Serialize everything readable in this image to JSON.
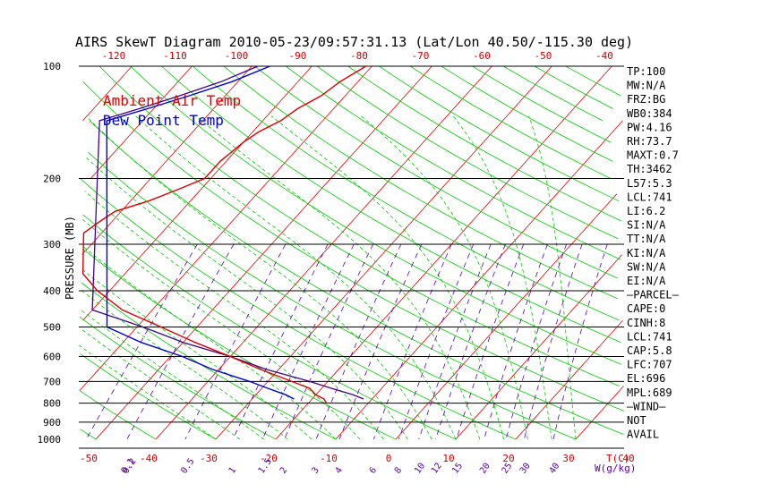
{
  "title": "AIRS SkewT Diagram 2010-05-23/09:57:31.13 (Lat/Lon 40.50/-115.30 deg)",
  "legend": [
    {
      "label": "Ambient Air Temp",
      "color": "#dd0000"
    },
    {
      "label": "Dew Point Temp",
      "color": "#0000cc"
    }
  ],
  "colors": {
    "isotherm": "#dd0000",
    "dry_adiabat": "#00cc00",
    "moist_adiabat": "#00cc00",
    "mixing_ratio": "#5500aa",
    "isobar": "#000000",
    "parcel": "#440088",
    "labels_pressure": "#000000",
    "labels_temp": "#cc0000",
    "labels_mixing": "#550099"
  },
  "axes": {
    "ylabel": "PRESSURE (MB)",
    "xlabel_temp": "T(C)",
    "xlabel_mixing": "W(g/kg)",
    "pressure_ticks": [
      "100",
      "200",
      "300",
      "400",
      "500",
      "600",
      "700",
      "800",
      "900",
      "1000"
    ],
    "top_temp_ticks": [
      "-120",
      "-110",
      "-100",
      "-90",
      "-80",
      "-70",
      "-60",
      "-50",
      "-40"
    ],
    "bottom_temp_ticks": [
      "-50",
      "-40",
      "-30",
      "-20",
      "-10",
      "0",
      "10",
      "20",
      "30",
      "40"
    ],
    "mixing_ticks": [
      "0.1",
      "0.2",
      "0.5",
      "1",
      "1.5",
      "2",
      "3",
      "4",
      "6",
      "8",
      "10",
      "12",
      "15",
      "20",
      "25",
      "30",
      "40"
    ]
  },
  "indices": [
    "TP:100",
    "MW:N/A",
    "FRZ:BG",
    "WB0:384",
    "PW:4.16",
    "RH:73.7",
    "MAXT:0.7",
    "TH:3462",
    "L57:5.3",
    "LCL:741",
    "LI:6.2",
    "SI:N/A",
    "TT:N/A",
    "KI:N/A",
    "SW:N/A",
    "EI:N/A",
    "—PARCEL—",
    "CAPE:0",
    "CINH:8",
    "LCL:741",
    "CAP:5.8",
    "LFC:707",
    "EL:696",
    "MPL:689",
    "—WIND—",
    "NOT",
    "AVAIL"
  ],
  "chart_data": {
    "type": "line",
    "title": "AIRS SkewT Diagram 2010-05-23/09:57:31.13 (Lat/Lon 40.50/-115.30 deg)",
    "xlabel": "T(C)",
    "ylabel": "PRESSURE (MB)",
    "ylim": [
      1000,
      100
    ],
    "yscale": "log",
    "series": [
      {
        "name": "Ambient Air Temp",
        "color": "#dd0000",
        "x_name": "temperature_C",
        "pressure": [
          100,
          110,
          120,
          130,
          140,
          150,
          160,
          170,
          180,
          190,
          200,
          215,
          230,
          245,
          260,
          280,
          300,
          330,
          360,
          400,
          450,
          500,
          550,
          600,
          650,
          700,
          730,
          760,
          780,
          800
        ],
        "temperature": [
          -51,
          -53,
          -54,
          -56,
          -57,
          -59,
          -60,
          -60.5,
          -61,
          -61,
          -61,
          -64,
          -67,
          -71,
          -72,
          -73,
          -74,
          -70,
          -67,
          -62,
          -55,
          -46,
          -38,
          -30,
          -23,
          -16,
          -12,
          -10,
          -8,
          -7
        ]
      },
      {
        "name": "Dew Point Temp",
        "color": "#0000cc",
        "x_name": "dewpoint_C",
        "pressure": [
          100,
          110,
          120,
          130,
          140,
          150,
          160,
          170,
          180,
          190,
          200,
          215,
          230,
          245,
          260,
          280,
          300,
          330,
          360,
          400,
          450,
          500,
          550,
          600,
          650,
          700,
          730,
          760,
          780
        ],
        "temperature": [
          -67,
          -71,
          -76,
          -81,
          -86,
          -91,
          -92,
          -93.5,
          -95.5,
          -98,
          -99,
          -99.5,
          -99.5,
          -98.5,
          -97,
          -93,
          -89,
          -84,
          -78,
          -72,
          -65,
          -55,
          -47,
          -38,
          -31,
          -23,
          -19,
          -15,
          -13
        ]
      }
    ],
    "grid": true
  }
}
